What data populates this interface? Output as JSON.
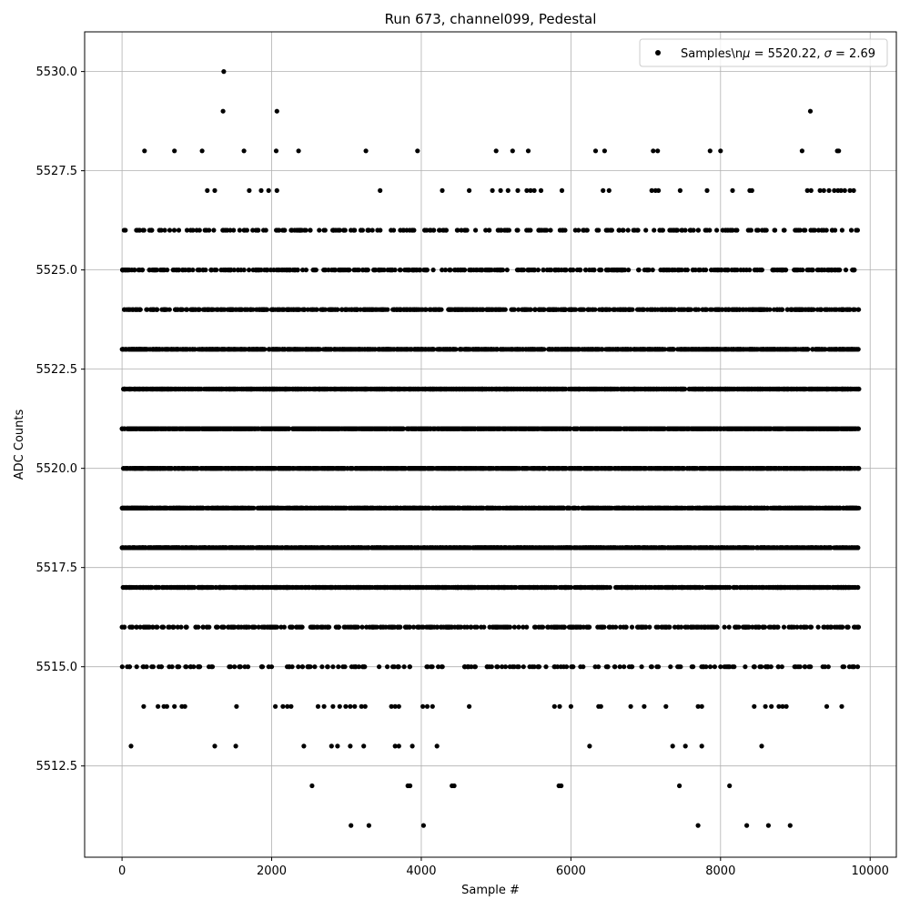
{
  "chart_data": {
    "type": "scatter",
    "title": "Run 673, channel099, Pedestal",
    "xlabel": "Sample #",
    "ylabel": "ADC Counts",
    "xlim": [
      -500,
      10350
    ],
    "ylim": [
      5510.2,
      5531.0
    ],
    "x_ticks": [
      0,
      2000,
      4000,
      6000,
      8000,
      10000
    ],
    "x_tick_labels": [
      "0",
      "2000",
      "4000",
      "6000",
      "8000",
      "10000"
    ],
    "y_ticks": [
      5512.5,
      5515.0,
      5517.5,
      5520.0,
      5522.5,
      5525.0,
      5527.5,
      5530.0
    ],
    "y_tick_labels": [
      "5512.5",
      "5515.0",
      "5517.5",
      "5520.0",
      "5522.5",
      "5525.0",
      "5527.5",
      "5530.0"
    ],
    "grid": true,
    "legend_position": "top-right",
    "series": [
      {
        "name": "Samples\\n$\\mu$ = 5520.22, $\\sigma$ = 2.69",
        "legend_parts": [
          "Samples\\n",
          "μ",
          " = 5520.22, ",
          "σ",
          " = 2.69"
        ],
        "color": "#000000",
        "x_range": [
          0,
          9850
        ],
        "levels": [
          {
            "y": 5511,
            "x": [
              3060,
              3300,
              4030,
              7700,
              8350,
              8640,
              8930
            ]
          },
          {
            "y": 5512,
            "x": [
              2540,
              3820,
              3850,
              4410,
              4440,
              5840,
              5870,
              7450,
              8120
            ]
          },
          {
            "y": 5513,
            "x": [
              120,
              1240,
              1520,
              2430,
              2800,
              2880,
              3050,
              3230,
              3650,
              3700,
              3880,
              4210,
              6250,
              7360,
              7530,
              7750,
              8550
            ]
          },
          {
            "y": 5514,
            "x": [
              290,
              480,
              560,
              600,
              700,
              800,
              840,
              1530,
              2050,
              2150,
              2210,
              2260,
              2620,
              2700,
              2820,
              2910,
              2990,
              3050,
              3110,
              3200,
              3250,
              3600,
              3650,
              3700,
              4020,
              4080,
              4150,
              4640,
              5780,
              5850,
              6000,
              6370,
              6400,
              6800,
              6980,
              7270,
              7700,
              7750,
              8450,
              8600,
              8680,
              8780,
              8830,
              8880,
              9420,
              9620
            ]
          },
          {
            "y": 5530,
            "x": [
              1360
            ]
          },
          {
            "y": 5529,
            "x": [
              1350,
              2070,
              9200
            ]
          },
          {
            "y": 5528,
            "x": [
              300,
              700,
              1070,
              1630,
              2060,
              2360,
              3260,
              3950,
              5000,
              5220,
              5430,
              6330,
              6450,
              7100,
              7160,
              7860,
              8000,
              9090,
              9560,
              9580
            ]
          },
          {
            "y": 5527,
            "x": [
              1140,
              1240,
              1700,
              1860,
              1960,
              2070,
              3450,
              4280,
              4640,
              4950,
              5060,
              5160,
              5290,
              5410,
              5460,
              5510,
              5600,
              5880,
              6430,
              6510,
              7080,
              7130,
              7170,
              7460,
              7820,
              8160,
              8390,
              8420,
              9160,
              9210,
              9330,
              9380,
              9450,
              9520,
              9570,
              9610,
              9660,
              9730,
              9780
            ]
          }
        ],
        "dense_levels": [
          5515,
          5516,
          5517,
          5518,
          5519,
          5520,
          5521,
          5522,
          5523,
          5524,
          5525,
          5526
        ],
        "dense_counts": [
          200,
          420,
          1050,
          1350,
          1600,
          1700,
          1650,
          1500,
          1150,
          700,
          420,
          260
        ]
      }
    ]
  }
}
